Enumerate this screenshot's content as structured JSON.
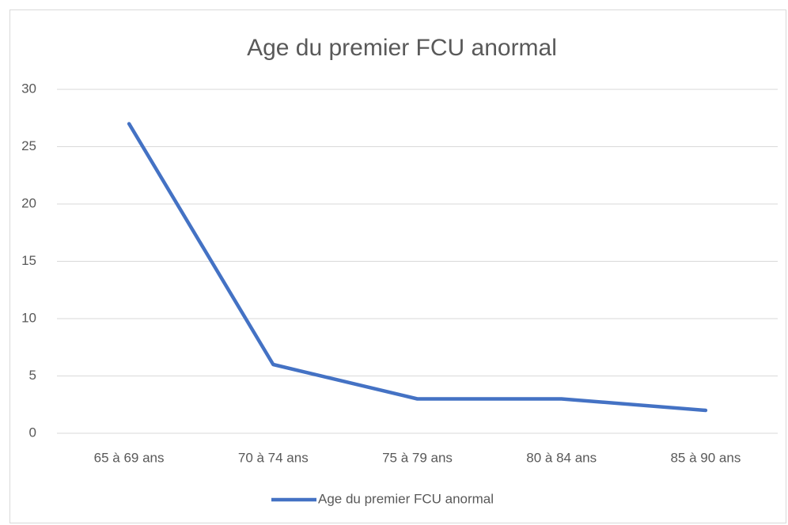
{
  "chart_data": {
    "type": "line",
    "title": "Age du premier FCU anormal",
    "categories": [
      "65 à 69 ans",
      "70 à 74 ans",
      "75 à 79 ans",
      "80 à 84 ans",
      "85 à 90 ans"
    ],
    "series": [
      {
        "name": "Age du premier FCU anormal",
        "color": "#4472c4",
        "values": [
          27,
          6,
          3,
          3,
          2
        ]
      }
    ],
    "ylim": [
      0,
      30
    ],
    "yticks": [
      0,
      5,
      10,
      15,
      20,
      25,
      30
    ],
    "grid": true,
    "legend": "bottom"
  }
}
